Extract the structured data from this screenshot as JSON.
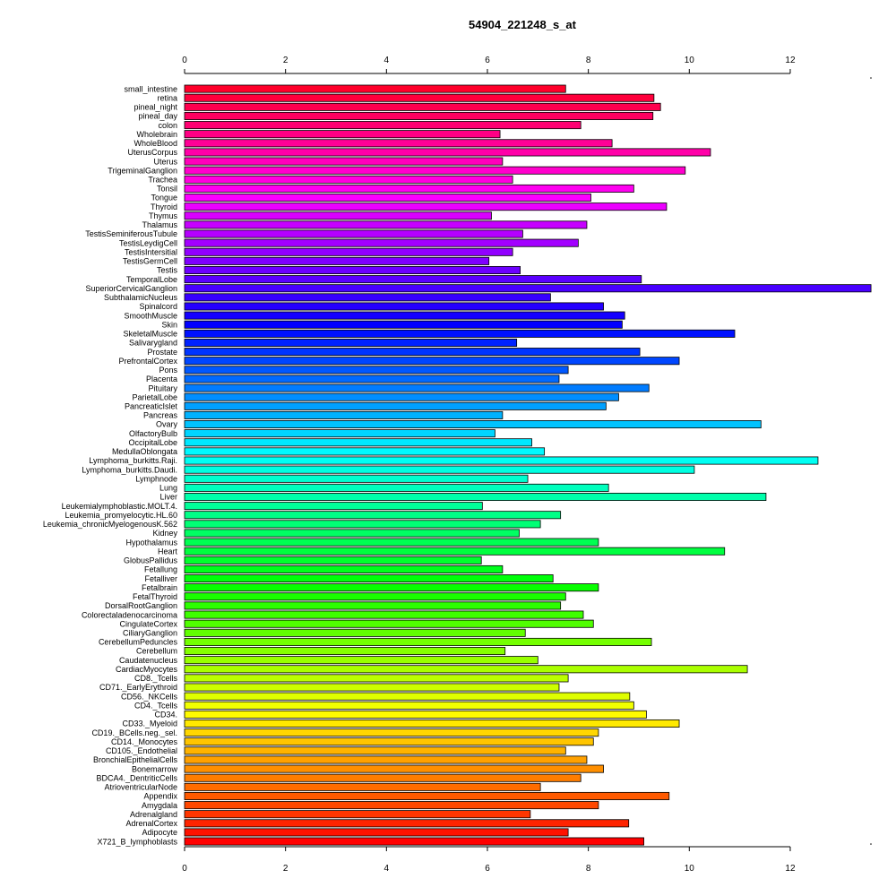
{
  "chart_data": {
    "type": "bar",
    "orientation": "horizontal",
    "title": "54904_221248_s_at",
    "xlabel": "",
    "ylabel": "",
    "xlim": [
      0,
      13.6
    ],
    "x_ticks": [
      0,
      2,
      4,
      6,
      8,
      10,
      12
    ],
    "grid": false,
    "legend": "none",
    "categories": [
      "small_intestine",
      "retina",
      "pineal_night",
      "pineal_day",
      "colon",
      "Wholebrain",
      "WholeBlood",
      "UterusCorpus",
      "Uterus",
      "TrigeminalGanglion",
      "Trachea",
      "Tonsil",
      "Tongue",
      "Thyroid",
      "Thymus",
      "Thalamus",
      "TestisSeminiferousTubule",
      "TestisLeydigCell",
      "TestisIntersitial",
      "TestisGermCell",
      "Testis",
      "TemporalLobe",
      "SuperiorCervicalGanglion",
      "SubthalamicNucleus",
      "Spinalcord",
      "SmoothMuscle",
      "Skin",
      "SkeletalMuscle",
      "Salivarygland",
      "Prostate",
      "PrefrontalCortex",
      "Pons",
      "Placenta",
      "Pituitary",
      "ParietalLobe",
      "PancreaticIslet",
      "Pancreas",
      "Ovary",
      "OlfactoryBulb",
      "OccipitalLobe",
      "MedullaOblongata",
      "Lymphoma_burkitts.Raji.",
      "Lymphoma_burkitts.Daudi.",
      "Lymphnode",
      "Lung",
      "Liver",
      "Leukemialymphoblastic.MOLT.4.",
      "Leukemia_promyelocytic.HL.60",
      "Leukemia_chronicMyelogenousK.562",
      "Kidney",
      "Hypothalamus",
      "Heart",
      "GlobusPallidus",
      "Fetallung",
      "Fetalliver",
      "Fetalbrain",
      "FetalThyroid",
      "DorsalRootGanglion",
      "Colorectaladenocarcinoma",
      "CingulateCortex",
      "CiliaryGanglion",
      "CerebellumPeduncles",
      "Cerebellum",
      "Caudatenucleus",
      "CardiacMyocytes",
      "CD8._Tcells",
      "CD71._EarlyErythroid",
      "CD56._NKCells",
      "CD4._Tcells",
      "CD34.",
      "CD33._Myeloid",
      "CD19._BCells.neg._sel.",
      "CD14._Monocytes",
      "CD105._Endothelial",
      "BronchialEpithelialCells",
      "Bonemarrow",
      "BDCA4._DentriticCells",
      "AtrioventricularNode",
      "Appendix",
      "Amygdala",
      "Adrenalgland",
      "AdrenalCortex",
      "Adipocyte",
      "X721_B_lymphoblasts"
    ],
    "values": [
      7.55,
      9.3,
      9.43,
      9.28,
      7.85,
      6.25,
      8.47,
      10.42,
      6.3,
      9.92,
      6.5,
      8.9,
      8.05,
      9.55,
      6.08,
      7.97,
      6.7,
      7.8,
      6.5,
      6.03,
      6.65,
      9.05,
      13.6,
      7.25,
      8.3,
      8.72,
      8.67,
      10.9,
      6.58,
      9.02,
      9.8,
      7.6,
      7.42,
      9.2,
      8.6,
      8.35,
      6.3,
      11.42,
      6.15,
      6.88,
      7.13,
      12.55,
      10.1,
      6.8,
      8.4,
      11.52,
      5.9,
      7.45,
      7.05,
      6.63,
      8.2,
      10.7,
      5.88,
      6.3,
      7.3,
      8.2,
      7.55,
      7.45,
      7.9,
      8.1,
      6.75,
      9.25,
      6.35,
      7.0,
      11.15,
      7.6,
      7.42,
      8.82,
      8.9,
      9.15,
      9.8,
      8.2,
      8.1,
      7.55,
      7.97,
      8.3,
      7.85,
      7.05,
      9.6,
      8.2,
      6.85,
      8.8,
      7.6,
      9.1
    ]
  }
}
